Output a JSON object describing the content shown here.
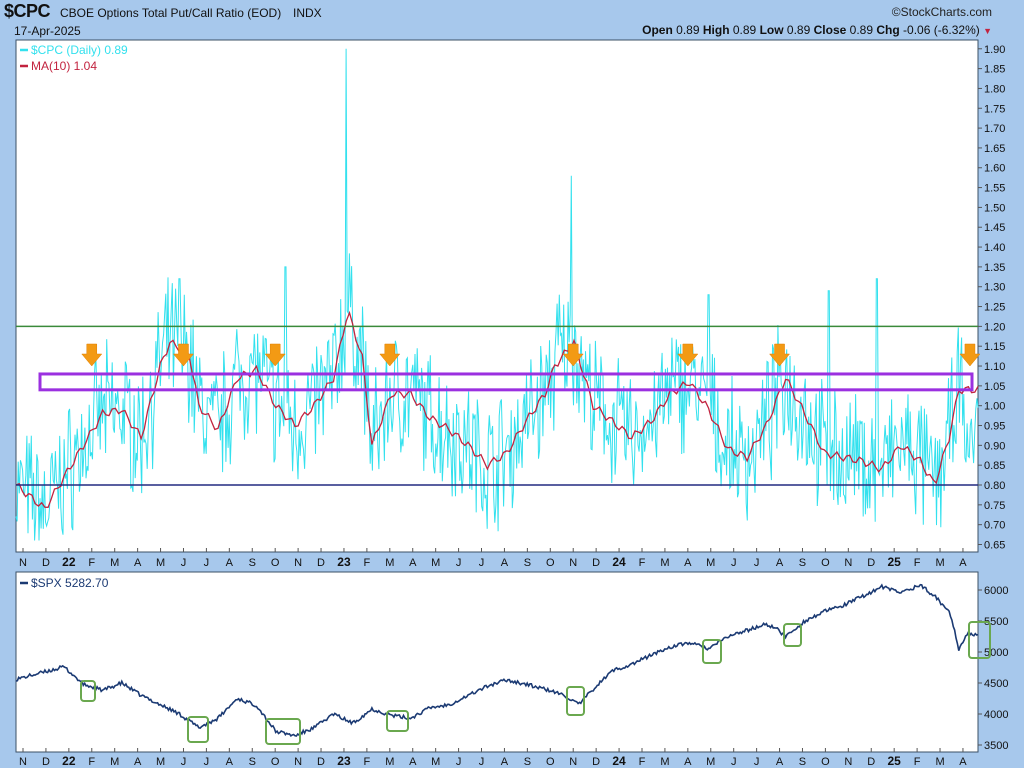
{
  "header": {
    "symbol": "$CPC",
    "title": "CBOE Options Total Put/Call Ratio (EOD)",
    "exchange": "INDX",
    "brand": "©StockCharts.com",
    "date": "17-Apr-2025",
    "open_label": "Open",
    "open": "0.89",
    "high_label": "High",
    "high": "0.89",
    "low_label": "Low",
    "low": "0.89",
    "close_label": "Close",
    "close": "0.89",
    "chg_label": "Chg",
    "chg": "-0.06 (-6.32%)",
    "chg_arrow": "▼"
  },
  "colors": {
    "cpc": "#33e1ee",
    "ma": "#c2233f",
    "spx": "#1b3a73",
    "upper_line": "#3a8a3a",
    "lower_line": "#222a80",
    "band": "#9b30e0",
    "arrow": "#f39a14",
    "box": "#6aa84f",
    "chg_down": "#c2233f"
  },
  "chart_data": [
    {
      "type": "line",
      "legend": [
        "$CPC (Daily) 0.89",
        "MA(10) 1.04"
      ],
      "series": [
        {
          "name": "$CPC (Daily)",
          "last": 0.89
        },
        {
          "name": "MA(10)",
          "last": 1.04
        }
      ],
      "x_labels": [
        "N",
        "D",
        "22",
        "F",
        "M",
        "A",
        "M",
        "J",
        "J",
        "A",
        "S",
        "O",
        "N",
        "D",
        "23",
        "F",
        "M",
        "A",
        "M",
        "J",
        "J",
        "A",
        "S",
        "O",
        "N",
        "D",
        "24",
        "F",
        "M",
        "A",
        "M",
        "J",
        "J",
        "A",
        "S",
        "O",
        "N",
        "D",
        "25",
        "F",
        "M",
        "A"
      ],
      "y_ticks": [
        "1.90",
        "1.85",
        "1.80",
        "1.75",
        "1.70",
        "1.65",
        "1.60",
        "1.55",
        "1.50",
        "1.45",
        "1.40",
        "1.35",
        "1.30",
        "1.25",
        "1.20",
        "1.15",
        "1.10",
        "1.05",
        "1.00",
        "0.95",
        "0.90",
        "0.85",
        "0.80",
        "0.75",
        "0.70",
        "0.65"
      ],
      "ylim": [
        0.63,
        1.93
      ],
      "horizontal_lines": [
        1.2,
        0.8
      ],
      "band": [
        1.04,
        1.08
      ],
      "ma_points": [
        [
          0,
          0.8
        ],
        [
          0.03,
          0.74
        ],
        [
          0.06,
          0.86
        ],
        [
          0.09,
          0.98
        ],
        [
          0.11,
          0.99
        ],
        [
          0.13,
          0.92
        ],
        [
          0.15,
          1.1
        ],
        [
          0.16,
          1.16
        ],
        [
          0.18,
          1.13
        ],
        [
          0.19,
          1.0
        ],
        [
          0.21,
          0.94
        ],
        [
          0.23,
          1.07
        ],
        [
          0.25,
          1.09
        ],
        [
          0.27,
          1.0
        ],
        [
          0.29,
          0.95
        ],
        [
          0.31,
          1.0
        ],
        [
          0.33,
          1.07
        ],
        [
          0.345,
          1.24
        ],
        [
          0.36,
          1.12
        ],
        [
          0.37,
          0.9
        ],
        [
          0.39,
          1.03
        ],
        [
          0.41,
          1.03
        ],
        [
          0.43,
          0.97
        ],
        [
          0.45,
          0.94
        ],
        [
          0.47,
          0.9
        ],
        [
          0.49,
          0.85
        ],
        [
          0.51,
          0.88
        ],
        [
          0.53,
          0.96
        ],
        [
          0.55,
          1.03
        ],
        [
          0.56,
          1.1
        ],
        [
          0.57,
          1.13
        ],
        [
          0.58,
          1.16
        ],
        [
          0.59,
          1.08
        ],
        [
          0.6,
          1.0
        ],
        [
          0.62,
          0.96
        ],
        [
          0.64,
          0.92
        ],
        [
          0.66,
          0.96
        ],
        [
          0.68,
          1.03
        ],
        [
          0.7,
          1.06
        ],
        [
          0.72,
          0.99
        ],
        [
          0.74,
          0.89
        ],
        [
          0.76,
          0.87
        ],
        [
          0.78,
          0.95
        ],
        [
          0.8,
          1.07
        ],
        [
          0.82,
          0.98
        ],
        [
          0.84,
          0.88
        ],
        [
          0.86,
          0.87
        ],
        [
          0.88,
          0.86
        ],
        [
          0.9,
          0.84
        ],
        [
          0.92,
          0.9
        ],
        [
          0.94,
          0.86
        ],
        [
          0.955,
          0.8
        ],
        [
          0.97,
          0.92
        ],
        [
          0.98,
          1.04
        ],
        [
          1.0,
          1.04
        ]
      ],
      "arrows_x": [
        "F",
        "J",
        "O",
        "M",
        "N",
        "A",
        "A",
        "A"
      ]
    },
    {
      "type": "line",
      "legend": [
        "$SPX 5282.70"
      ],
      "series": [
        {
          "name": "$SPX",
          "last": 5282.7
        }
      ],
      "y_ticks": [
        "6000",
        "5500",
        "5000",
        "4500",
        "4000",
        "3500"
      ],
      "ylim": [
        3450,
        6200
      ],
      "points": [
        [
          0,
          4560
        ],
        [
          0.03,
          4680
        ],
        [
          0.05,
          4760
        ],
        [
          0.07,
          4480
        ],
        [
          0.09,
          4380
        ],
        [
          0.11,
          4500
        ],
        [
          0.13,
          4300
        ],
        [
          0.15,
          4150
        ],
        [
          0.17,
          4000
        ],
        [
          0.19,
          3780
        ],
        [
          0.21,
          3930
        ],
        [
          0.23,
          4250
        ],
        [
          0.25,
          4140
        ],
        [
          0.27,
          3720
        ],
        [
          0.29,
          3650
        ],
        [
          0.31,
          3780
        ],
        [
          0.33,
          4000
        ],
        [
          0.35,
          3850
        ],
        [
          0.37,
          4080
        ],
        [
          0.39,
          3980
        ],
        [
          0.41,
          3930
        ],
        [
          0.43,
          4100
        ],
        [
          0.45,
          4150
        ],
        [
          0.47,
          4300
        ],
        [
          0.49,
          4450
        ],
        [
          0.51,
          4550
        ],
        [
          0.53,
          4480
        ],
        [
          0.55,
          4400
        ],
        [
          0.57,
          4300
        ],
        [
          0.585,
          4150
        ],
        [
          0.6,
          4400
        ],
        [
          0.62,
          4700
        ],
        [
          0.64,
          4800
        ],
        [
          0.66,
          4950
        ],
        [
          0.68,
          5080
        ],
        [
          0.7,
          5150
        ],
        [
          0.72,
          5050
        ],
        [
          0.74,
          5250
        ],
        [
          0.76,
          5350
        ],
        [
          0.78,
          5450
        ],
        [
          0.79,
          5380
        ],
        [
          0.8,
          5250
        ],
        [
          0.82,
          5500
        ],
        [
          0.84,
          5650
        ],
        [
          0.86,
          5750
        ],
        [
          0.88,
          5900
        ],
        [
          0.9,
          6050
        ],
        [
          0.92,
          5960
        ],
        [
          0.94,
          6080
        ],
        [
          0.955,
          5900
        ],
        [
          0.97,
          5650
        ],
        [
          0.975,
          5400
        ],
        [
          0.98,
          5050
        ],
        [
          0.99,
          5300
        ],
        [
          1.0,
          5283
        ]
      ],
      "green_boxes": [
        "F",
        "J",
        "O",
        "M",
        "N",
        "A",
        "A",
        "A"
      ]
    }
  ]
}
